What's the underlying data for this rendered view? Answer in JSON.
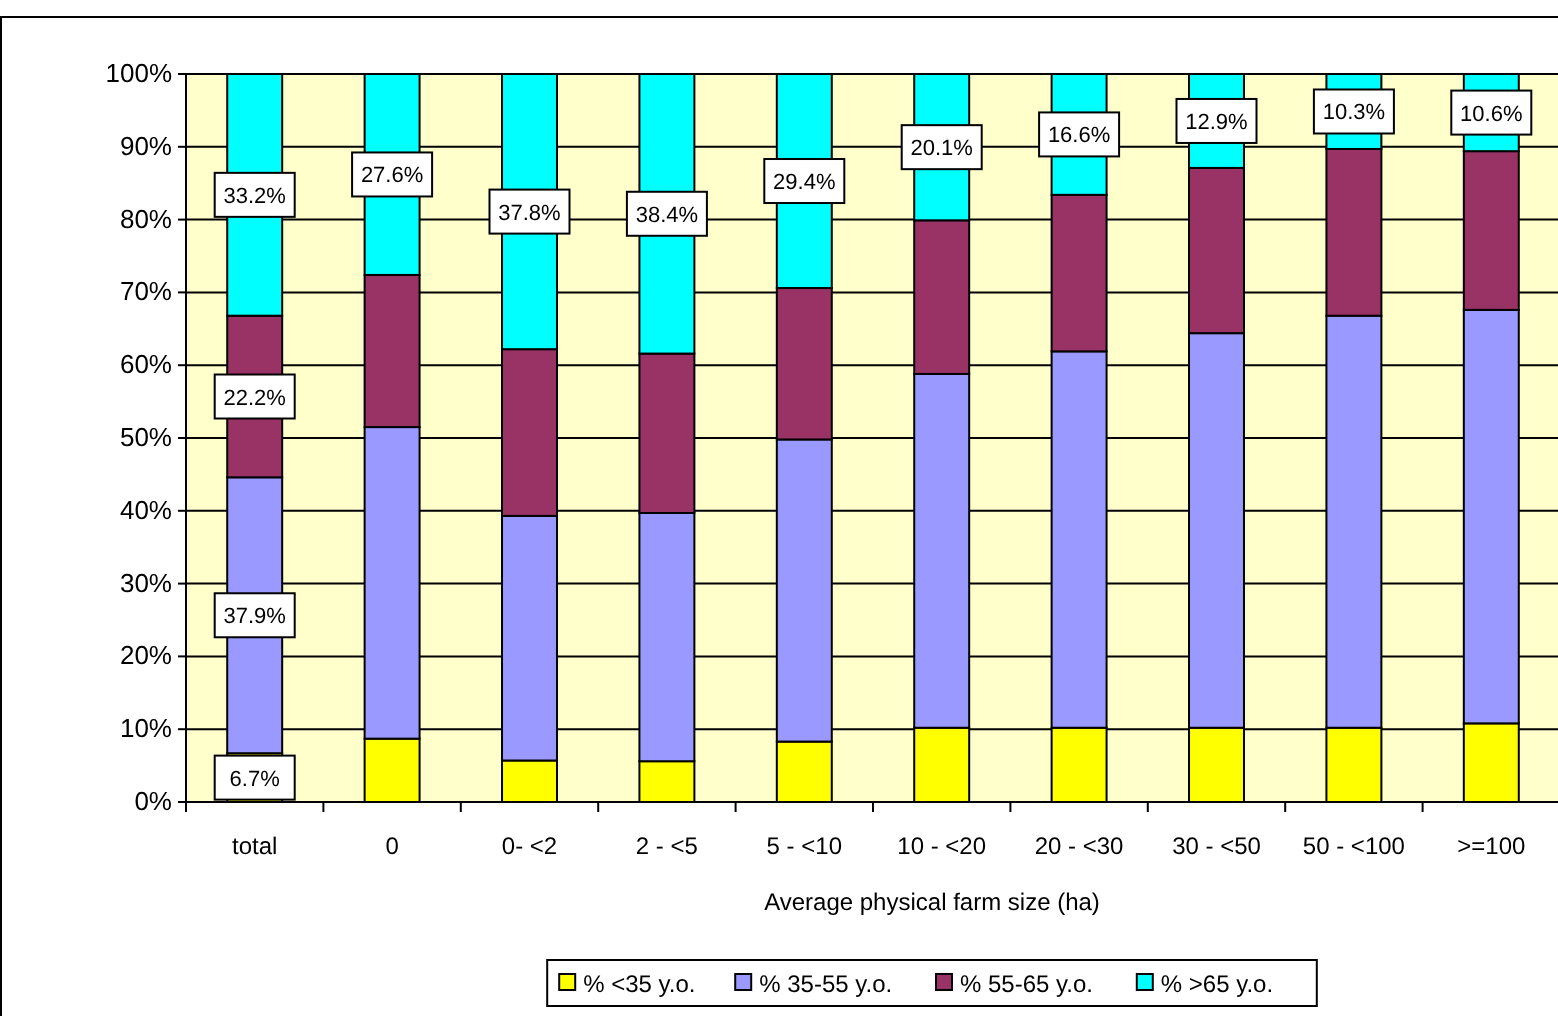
{
  "chart_data": {
    "type": "bar",
    "stacked": true,
    "xlabel": "Average physical farm size (ha)",
    "categories": [
      "total",
      "0",
      "0- <2",
      "2 - <5",
      "5 - <10",
      "10 - <20",
      "20 - <30",
      "30 - <50",
      "50 - <100",
      ">=100"
    ],
    "series": [
      {
        "name": "% <35 y.o.",
        "color": "#ffff00",
        "values": [
          6.7,
          8.7,
          5.7,
          5.6,
          8.3,
          10.2,
          10.2,
          10.2,
          10.2,
          10.8
        ],
        "value_labels": [
          "6.7%",
          null,
          null,
          null,
          null,
          null,
          null,
          null,
          null,
          null
        ]
      },
      {
        "name": "% 35-55 y.o.",
        "color": "#9999ff",
        "values": [
          37.9,
          42.8,
          33.6,
          34.1,
          41.5,
          48.6,
          51.7,
          54.2,
          56.6,
          56.8
        ],
        "value_labels": [
          "37.9%",
          null,
          null,
          null,
          null,
          null,
          null,
          null,
          null,
          null
        ]
      },
      {
        "name": "% 55-65 y.o.",
        "color": "#993366",
        "values": [
          22.2,
          20.9,
          22.9,
          21.9,
          20.8,
          21.1,
          21.5,
          22.7,
          22.9,
          21.8
        ],
        "value_labels": [
          "22.2%",
          null,
          null,
          null,
          null,
          null,
          null,
          null,
          null,
          null
        ]
      },
      {
        "name": "% >65 y.o.",
        "color": "#00ffff",
        "values": [
          33.2,
          27.6,
          37.8,
          38.4,
          29.4,
          20.1,
          16.6,
          12.9,
          10.3,
          10.6
        ],
        "value_labels": [
          "33.2%",
          "27.6%",
          "37.8%",
          "38.4%",
          "29.4%",
          "20.1%",
          "16.6%",
          "12.9%",
          "10.3%",
          "10.6%"
        ]
      }
    ],
    "ylim": [
      0,
      100
    ],
    "yticks": [
      {
        "value": 0,
        "label": "0%"
      },
      {
        "value": 10,
        "label": "10%"
      },
      {
        "value": 20,
        "label": "20%"
      },
      {
        "value": 30,
        "label": "30%"
      },
      {
        "value": 40,
        "label": "40%"
      },
      {
        "value": 50,
        "label": "50%"
      },
      {
        "value": 60,
        "label": "60%"
      },
      {
        "value": 70,
        "label": "70%"
      },
      {
        "value": 80,
        "label": "80%"
      },
      {
        "value": 90,
        "label": "90%"
      },
      {
        "value": 100,
        "label": "100%"
      }
    ],
    "grid": "y",
    "legend": "bottom"
  }
}
